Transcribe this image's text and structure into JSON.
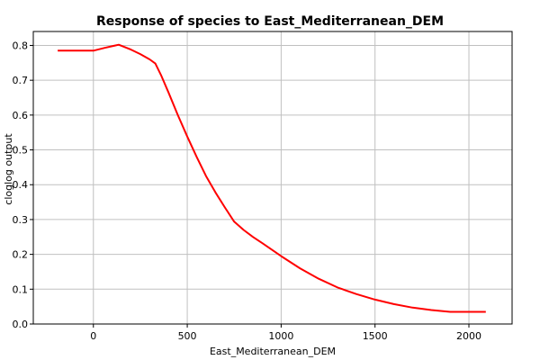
{
  "chart_data": {
    "type": "line",
    "title": "Response of species to East_Mediterranean_DEM",
    "xlabel": "East_Mediterranean_DEM",
    "ylabel": "cloglog output",
    "xlim": [
      -320,
      2230
    ],
    "ylim": [
      0,
      0.84
    ],
    "x_ticks": [
      0,
      500,
      1000,
      1500,
      2000
    ],
    "y_ticks": [
      0.0,
      0.1,
      0.2,
      0.3,
      0.4,
      0.5,
      0.6,
      0.7,
      0.8
    ],
    "x_tick_labels": [
      "0",
      "500",
      "1000",
      "1500",
      "2000"
    ],
    "y_tick_labels": [
      "0.0",
      "0.1",
      "0.2",
      "0.3",
      "0.4",
      "0.5",
      "0.6",
      "0.7",
      "0.8"
    ],
    "grid": true,
    "line_color": "#ff0000",
    "series": [
      {
        "x": [
          -190,
          0,
          60,
          135,
          200,
          250,
          300,
          330,
          360,
          400,
          450,
          500,
          550,
          600,
          650,
          700,
          750,
          800,
          850,
          900,
          1000,
          1100,
          1200,
          1300,
          1400,
          1500,
          1600,
          1700,
          1800,
          1900,
          1920,
          2000,
          2090
        ],
        "y": [
          0.785,
          0.785,
          0.793,
          0.802,
          0.788,
          0.775,
          0.76,
          0.748,
          0.715,
          0.665,
          0.6,
          0.538,
          0.48,
          0.425,
          0.378,
          0.335,
          0.294,
          0.27,
          0.25,
          0.232,
          0.195,
          0.16,
          0.13,
          0.105,
          0.086,
          0.07,
          0.057,
          0.047,
          0.04,
          0.035,
          0.035,
          0.035,
          0.035
        ]
      }
    ]
  }
}
